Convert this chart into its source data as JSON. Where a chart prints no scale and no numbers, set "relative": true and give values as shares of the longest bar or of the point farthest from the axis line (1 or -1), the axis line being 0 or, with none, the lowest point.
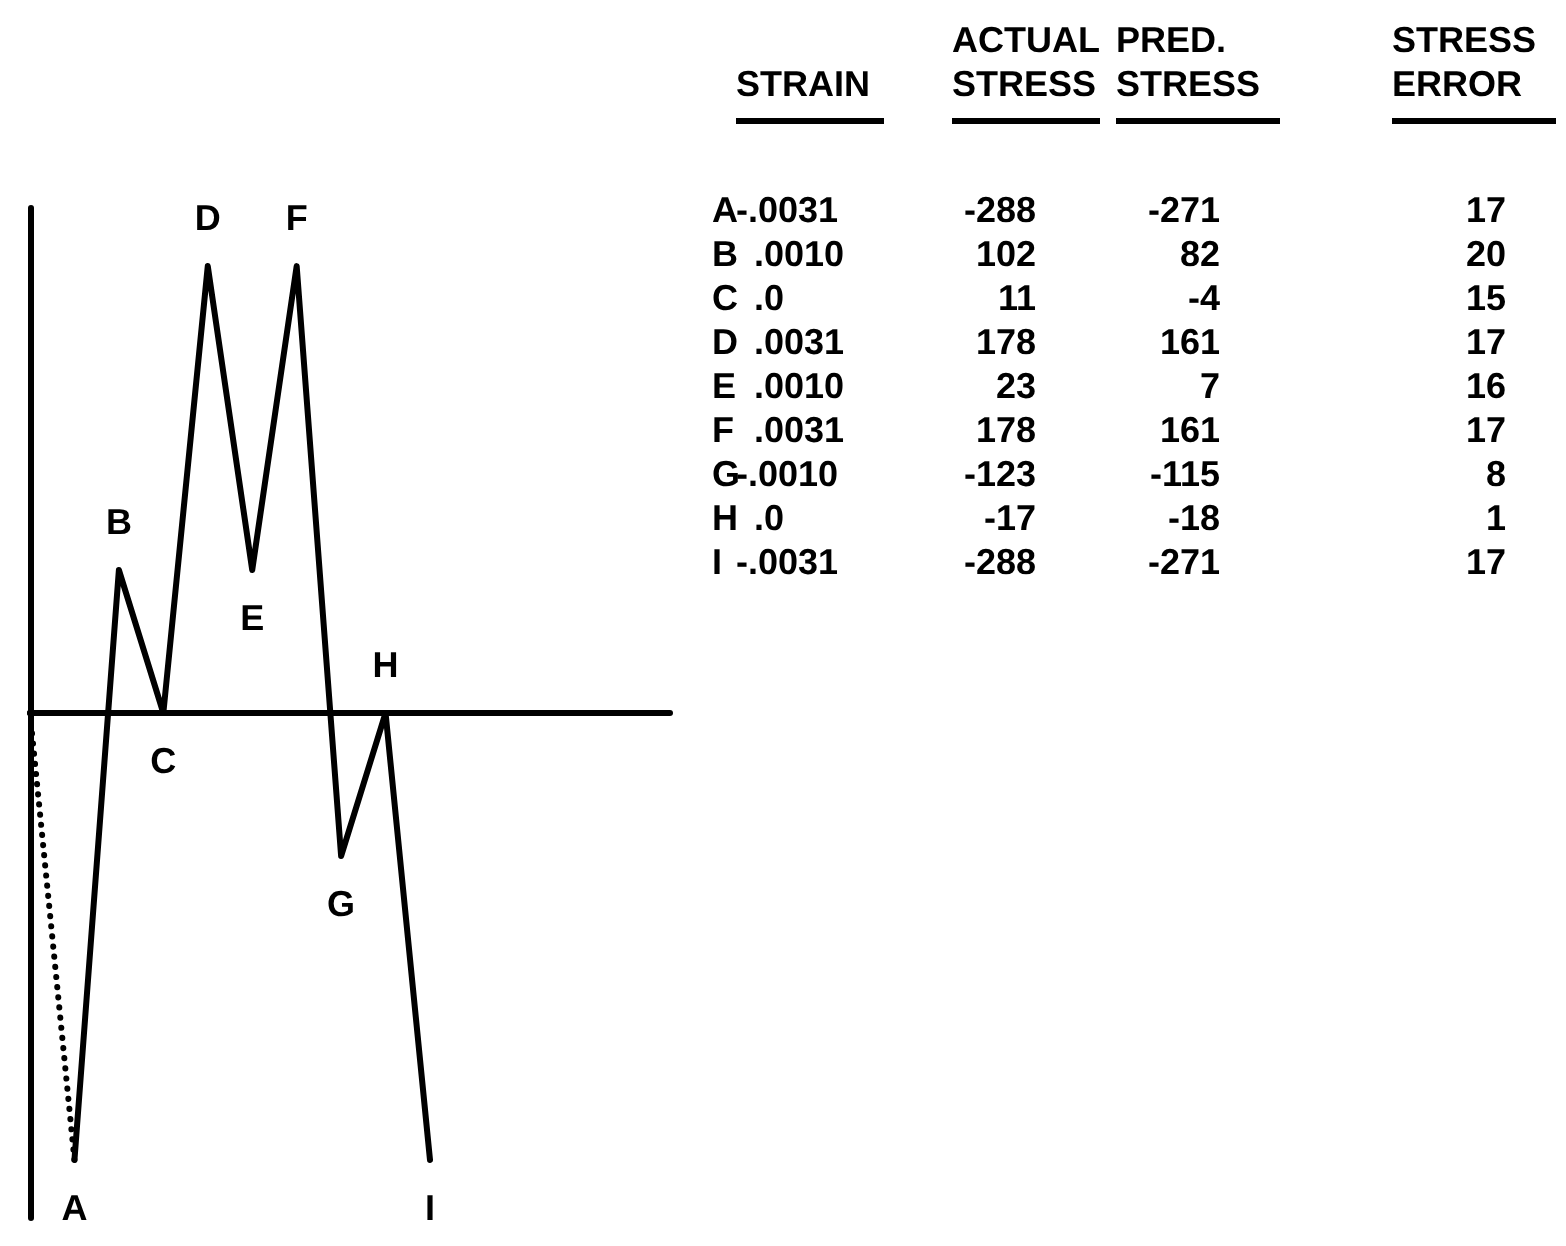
{
  "chart_data": [
    {
      "type": "line",
      "relative": true,
      "categories": [
        null,
        "A",
        "B",
        "C",
        "D",
        "E",
        "F",
        "G",
        "H",
        "I"
      ],
      "marker": "none",
      "series": [
        {
          "color": "#000000",
          "line_style": "dotted",
          "values": [
            0,
            -1,
            null,
            null,
            null,
            null,
            null,
            null,
            null,
            null
          ]
        },
        {
          "color": "#000000",
          "line_style": "solid",
          "values": [
            null,
            -1,
            0.32,
            0,
            1,
            0.32,
            1,
            -0.32,
            0,
            -1
          ]
        }
      ]
    },
    {
      "type": "other",
      "categories": [
        "A",
        "B",
        "C",
        "D",
        "E",
        "F",
        "G",
        "H",
        "I"
      ],
      "data_labels": true,
      "series": [
        {
          "name": "STRAIN",
          "values": [
            -0.0031,
            0.001,
            0,
            0.0031,
            0.001,
            0.0031,
            -0.001,
            0,
            -0.0031
          ],
          "value_labels": [
            "-.0031",
            ".0010",
            ".0",
            ".0031",
            ".0010",
            ".0031",
            "-.0010",
            ".0",
            "-.0031"
          ]
        },
        {
          "name": "ACTUAL STRESS",
          "values": [
            -288,
            102,
            11,
            178,
            23,
            178,
            -123,
            -17,
            -288
          ]
        },
        {
          "name": "PRED. STRESS",
          "values": [
            -271,
            82,
            -4,
            161,
            7,
            161,
            -115,
            -18,
            -271
          ]
        },
        {
          "name": "STRESS ERROR",
          "values": [
            17,
            20,
            15,
            17,
            16,
            17,
            8,
            1,
            17
          ]
        }
      ]
    }
  ]
}
